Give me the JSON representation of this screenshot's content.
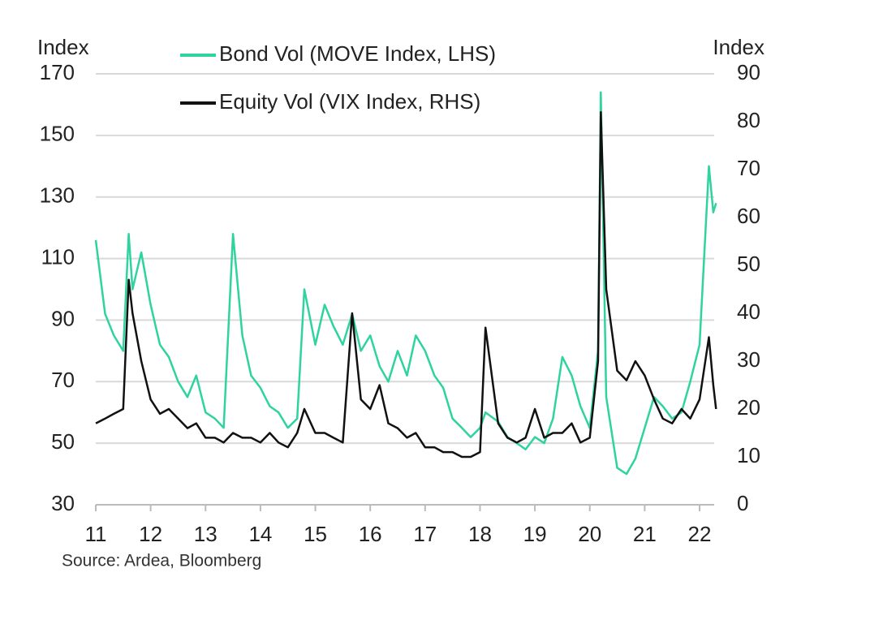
{
  "chart_data": {
    "type": "line",
    "y_label": "Index",
    "y2_label": "Index",
    "source": "Source: Ardea, Bloomberg",
    "x": [
      11.0,
      11.17,
      11.33,
      11.5,
      11.6,
      11.67,
      11.83,
      12.0,
      12.17,
      12.33,
      12.5,
      12.67,
      12.83,
      13.0,
      13.17,
      13.33,
      13.5,
      13.67,
      13.83,
      14.0,
      14.17,
      14.33,
      14.5,
      14.67,
      14.8,
      15.0,
      15.17,
      15.33,
      15.5,
      15.67,
      15.83,
      16.0,
      16.17,
      16.33,
      16.5,
      16.67,
      16.83,
      17.0,
      17.17,
      17.33,
      17.5,
      17.67,
      17.83,
      18.0,
      18.1,
      18.33,
      18.5,
      18.67,
      18.83,
      19.0,
      19.17,
      19.33,
      19.5,
      19.67,
      19.83,
      20.0,
      20.15,
      20.2,
      20.3,
      20.5,
      20.67,
      20.83,
      21.0,
      21.17,
      21.33,
      21.5,
      21.67,
      21.83,
      22.0,
      22.17,
      22.25,
      22.3
    ],
    "series": [
      {
        "name": "Bond Vol (MOVE Index, LHS)",
        "color": "#2fd3a0",
        "axis": "y",
        "values": [
          116,
          92,
          85,
          80,
          118,
          100,
          112,
          95,
          82,
          78,
          70,
          65,
          72,
          60,
          58,
          55,
          118,
          85,
          72,
          68,
          62,
          60,
          55,
          58,
          100,
          82,
          95,
          88,
          82,
          92,
          80,
          85,
          75,
          70,
          80,
          72,
          85,
          80,
          72,
          68,
          58,
          55,
          52,
          55,
          60,
          57,
          52,
          50,
          48,
          52,
          50,
          58,
          78,
          72,
          62,
          55,
          80,
          164,
          65,
          42,
          40,
          45,
          55,
          65,
          62,
          58,
          60,
          70,
          82,
          140,
          125,
          128
        ]
      },
      {
        "name": "Equity Vol (VIX Index, RHS)",
        "color": "#111111",
        "axis": "y2",
        "values": [
          17,
          18,
          19,
          20,
          47,
          40,
          30,
          22,
          19,
          20,
          18,
          16,
          17,
          14,
          14,
          13,
          15,
          14,
          14,
          13,
          15,
          13,
          12,
          15,
          20,
          15,
          15,
          14,
          13,
          40,
          22,
          20,
          25,
          17,
          16,
          14,
          15,
          12,
          12,
          11,
          11,
          10,
          10,
          11,
          37,
          17,
          14,
          13,
          14,
          20,
          14,
          15,
          15,
          17,
          13,
          14,
          30,
          82,
          45,
          28,
          26,
          30,
          27,
          22,
          18,
          17,
          20,
          18,
          22,
          35,
          25,
          20
        ]
      }
    ],
    "xlim": [
      11,
      22.3
    ],
    "xticks": [
      11,
      12,
      13,
      14,
      15,
      16,
      17,
      18,
      19,
      20,
      21,
      22
    ],
    "ylim": [
      30,
      170
    ],
    "yticks": [
      30,
      50,
      70,
      90,
      110,
      130,
      150,
      170
    ],
    "y2lim": [
      0,
      90
    ],
    "y2ticks": [
      0,
      10,
      20,
      30,
      40,
      50,
      60,
      70,
      80,
      90
    ],
    "grid": true
  }
}
